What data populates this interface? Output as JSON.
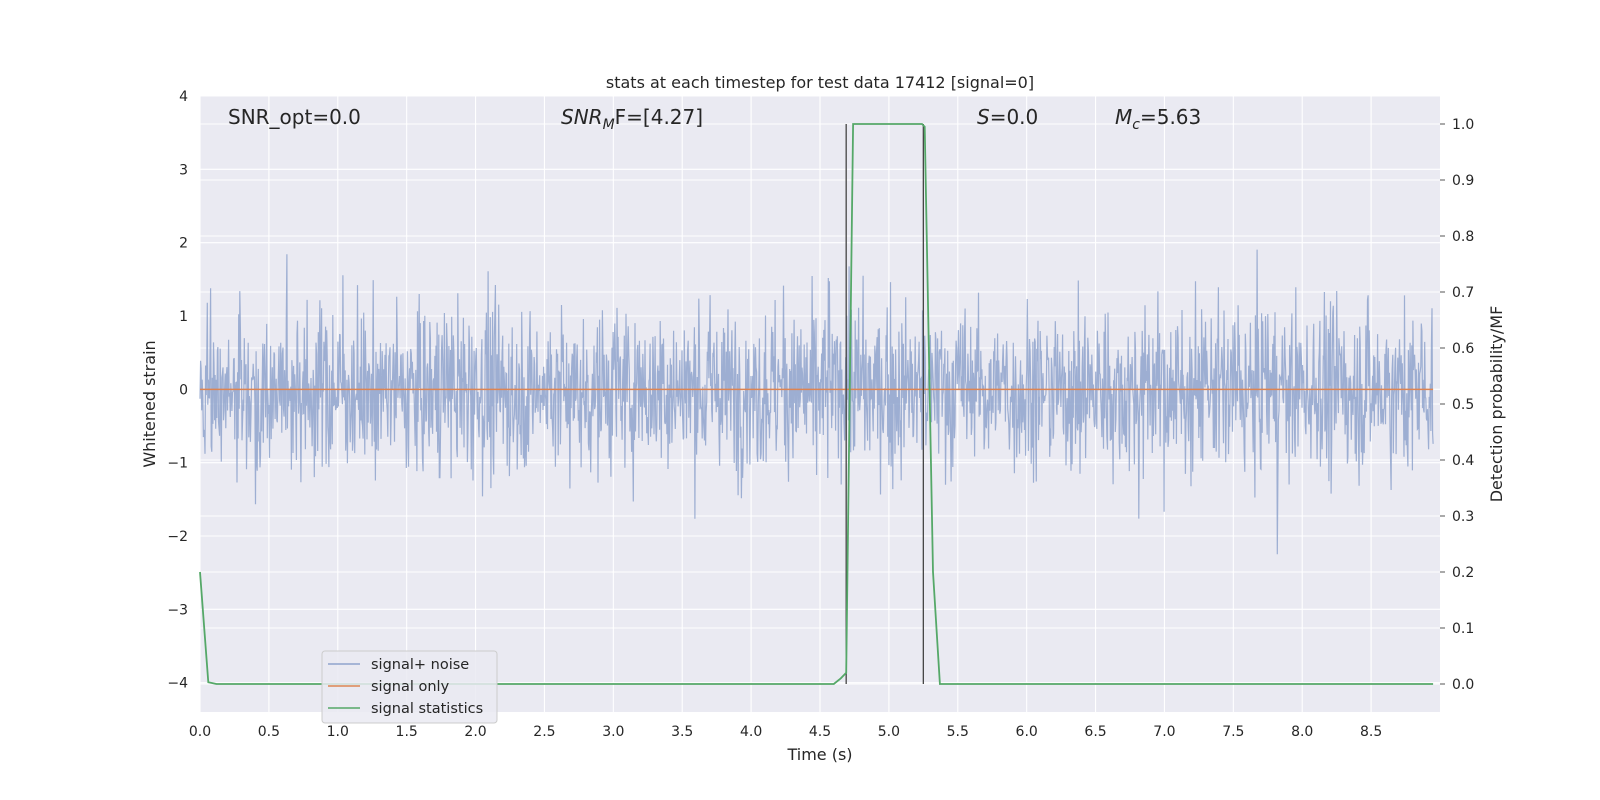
{
  "chart_data": {
    "type": "line",
    "title": "stats at each timestep for test data 17412 [signal=0]",
    "xlabel": "Time (s)",
    "ylabel": "Whitened strain",
    "y2label": "Detection probability/MF",
    "xlim": [
      0.0,
      9.0
    ],
    "ylim": [
      -4.4,
      4.0
    ],
    "y2lim": [
      -0.05,
      1.05
    ],
    "x_ticks": [
      "0.0",
      "0.5",
      "1.0",
      "1.5",
      "2.0",
      "2.5",
      "3.0",
      "3.5",
      "4.0",
      "4.5",
      "5.0",
      "5.5",
      "6.0",
      "6.5",
      "7.0",
      "7.5",
      "8.0",
      "8.5"
    ],
    "y_ticks": [
      "4",
      "3",
      "2",
      "1",
      "0",
      "−1",
      "−2",
      "−3",
      "−4"
    ],
    "y2_ticks": [
      "1.0",
      "0.9",
      "0.8",
      "0.7",
      "0.6",
      "0.5",
      "0.4",
      "0.3",
      "0.2",
      "0.1",
      "0.0"
    ],
    "grid": true,
    "legend_position": "lower-left",
    "annotations": {
      "snr_opt": "SNR_opt=0.0",
      "snr_mf_main": "SNR",
      "snr_mf_sub": "M",
      "snr_mf_rest": "F=[4.27]",
      "s_main": "S",
      "s_rest": "=0.0",
      "mc_main": "M",
      "mc_sub": "c",
      "mc_rest": "=5.63"
    },
    "series": [
      {
        "name": "signal+ noise",
        "color": "#8fa3cc",
        "description_amplitude_rms": 1.0
      },
      {
        "name": "signal only",
        "color": "#dd8452",
        "y_value": 0.0
      },
      {
        "name": "signal statistics",
        "color": "#55a868",
        "x": [
          0.0,
          0.06,
          0.12,
          4.6,
          4.65,
          4.69,
          4.74,
          5.24,
          5.26,
          5.32,
          5.37,
          8.95
        ],
        "y": [
          0.2,
          0.003,
          0.0,
          0.0,
          0.01,
          0.02,
          1.0,
          1.0,
          0.995,
          0.2,
          0.0,
          0.0
        ]
      }
    ],
    "vertical_lines_x": [
      4.69,
      5.25
    ],
    "vertical_lines_color": "#444444"
  }
}
